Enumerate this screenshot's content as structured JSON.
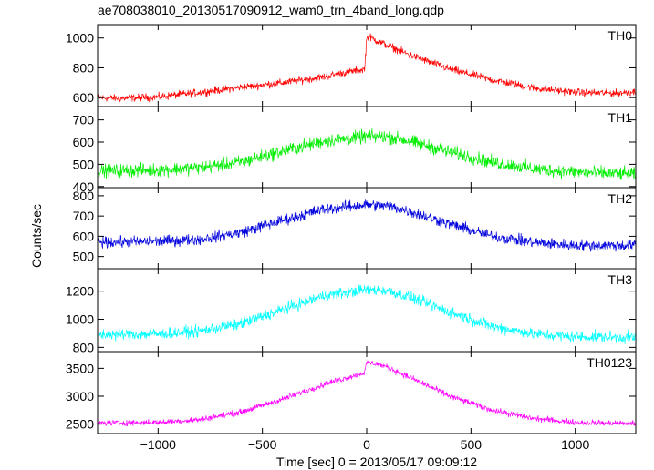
{
  "chart_data": {
    "type": "line",
    "title": "ae708038010_20130517090912_wam0_trn_4band_long.qdp",
    "xlabel": "Time [sec] 0 = 2013/05/17 09:09:12",
    "ylabel": "Counts/sec",
    "xlim": [
      -1290,
      1290
    ],
    "xticks": [
      {
        "value": -1000,
        "label": "−1000"
      },
      {
        "value": -500,
        "label": "−500"
      },
      {
        "value": 0,
        "label": "0"
      },
      {
        "value": 500,
        "label": "500"
      },
      {
        "value": 1000,
        "label": "1000"
      }
    ],
    "panels": [
      {
        "name": "TH0",
        "color": "#ff0000",
        "ylim": [
          540,
          1090
        ],
        "yticks": [
          600,
          800,
          1000
        ],
        "t": [
          -1280,
          -1200,
          -1000,
          -800,
          -600,
          -400,
          -200,
          -100,
          -10,
          0,
          10,
          50,
          100,
          200,
          400,
          600,
          800,
          1000,
          1200,
          1280
        ],
        "values": [
          600,
          595,
          605,
          635,
          670,
          700,
          740,
          770,
          790,
          1000,
          1010,
          980,
          950,
          890,
          790,
          720,
          665,
          635,
          630,
          640
        ],
        "noise": 22
      },
      {
        "name": "TH1",
        "color": "#00ee00",
        "ylim": [
          395,
          760
        ],
        "yticks": [
          400,
          500,
          600,
          700
        ],
        "t": [
          -1280,
          -1000,
          -800,
          -600,
          -400,
          -200,
          0,
          100,
          200,
          400,
          600,
          800,
          1000,
          1280
        ],
        "values": [
          470,
          475,
          485,
          510,
          560,
          605,
          625,
          625,
          605,
          555,
          510,
          480,
          465,
          455
        ],
        "noise": 26
      },
      {
        "name": "TH2",
        "color": "#0000dd",
        "ylim": [
          440,
          840
        ],
        "yticks": [
          500,
          600,
          700,
          800
        ],
        "t": [
          -1280,
          -1000,
          -800,
          -600,
          -400,
          -200,
          0,
          100,
          200,
          400,
          600,
          800,
          1000,
          1280
        ],
        "values": [
          570,
          575,
          585,
          620,
          680,
          735,
          755,
          750,
          725,
          660,
          600,
          570,
          555,
          555
        ],
        "noise": 24
      },
      {
        "name": "TH3",
        "color": "#00ffff",
        "ylim": [
          770,
          1360
        ],
        "yticks": [
          800,
          1000,
          1200
        ],
        "t": [
          -1280,
          -1000,
          -800,
          -600,
          -400,
          -200,
          0,
          100,
          200,
          400,
          600,
          800,
          1000,
          1280
        ],
        "values": [
          890,
          895,
          915,
          970,
          1070,
          1170,
          1210,
          1205,
          1160,
          1050,
          950,
          895,
          875,
          870
        ],
        "noise": 35
      },
      {
        "name": "TH0123",
        "color": "#ff00ff",
        "ylim": [
          2330,
          3800
        ],
        "yticks": [
          2500,
          3000,
          3500
        ],
        "t": [
          -1280,
          -1000,
          -800,
          -600,
          -400,
          -200,
          -10,
          0,
          50,
          100,
          200,
          400,
          600,
          800,
          1000,
          1280
        ],
        "values": [
          2520,
          2530,
          2580,
          2720,
          2950,
          3220,
          3420,
          3600,
          3580,
          3520,
          3350,
          3000,
          2750,
          2600,
          2530,
          2510
        ],
        "noise": 45
      }
    ]
  }
}
